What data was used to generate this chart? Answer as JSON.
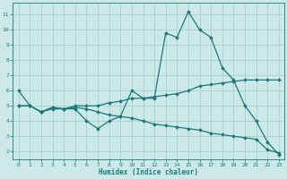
{
  "xlabel": "Humidex (Indice chaleur)",
  "bg_color": "#cce8e8",
  "grid_color": "#aad0d0",
  "line_color": "#1a7a7a",
  "xlim": [
    -0.5,
    23.5
  ],
  "ylim": [
    1.5,
    11.8
  ],
  "line1_x": [
    0,
    1,
    2,
    3,
    4,
    5,
    6,
    7,
    8,
    9,
    10,
    11,
    12,
    13,
    14,
    15,
    16,
    17,
    18,
    19,
    20,
    21,
    22,
    23
  ],
  "line1_y": [
    6.0,
    5.0,
    4.6,
    4.8,
    4.8,
    4.8,
    4.0,
    3.5,
    4.0,
    4.3,
    6.0,
    5.5,
    5.5,
    9.8,
    9.5,
    11.2,
    10.0,
    9.5,
    7.5,
    6.7,
    5.0,
    4.0,
    2.6,
    1.8
  ],
  "line2_x": [
    0,
    1,
    2,
    3,
    4,
    5,
    6,
    7,
    8,
    9,
    10,
    11,
    12,
    13,
    14,
    15,
    16,
    17,
    18,
    19,
    20,
    21,
    22,
    23
  ],
  "line2_y": [
    5.0,
    5.0,
    4.6,
    4.9,
    4.8,
    5.0,
    5.0,
    5.0,
    5.2,
    5.3,
    5.5,
    5.5,
    5.6,
    5.7,
    5.8,
    6.0,
    6.3,
    6.4,
    6.5,
    6.6,
    6.7,
    6.7,
    6.7,
    6.7
  ],
  "line3_x": [
    0,
    1,
    2,
    3,
    4,
    5,
    6,
    7,
    8,
    9,
    10,
    11,
    12,
    13,
    14,
    15,
    16,
    17,
    18,
    19,
    20,
    21,
    22,
    23
  ],
  "line3_y": [
    5.0,
    5.0,
    4.6,
    4.9,
    4.8,
    4.9,
    4.8,
    4.6,
    4.4,
    4.3,
    4.2,
    4.0,
    3.8,
    3.7,
    3.6,
    3.5,
    3.4,
    3.2,
    3.1,
    3.0,
    2.9,
    2.8,
    2.1,
    1.9
  ],
  "xticks": [
    0,
    1,
    2,
    3,
    4,
    5,
    6,
    7,
    8,
    9,
    10,
    11,
    12,
    13,
    14,
    15,
    16,
    17,
    18,
    19,
    20,
    21,
    22,
    23
  ],
  "yticks": [
    2,
    3,
    4,
    5,
    6,
    7,
    8,
    9,
    10,
    11
  ],
  "marker_size": 2.0,
  "line_width": 0.9,
  "xlabel_fontsize": 5.5,
  "tick_fontsize": 4.5
}
